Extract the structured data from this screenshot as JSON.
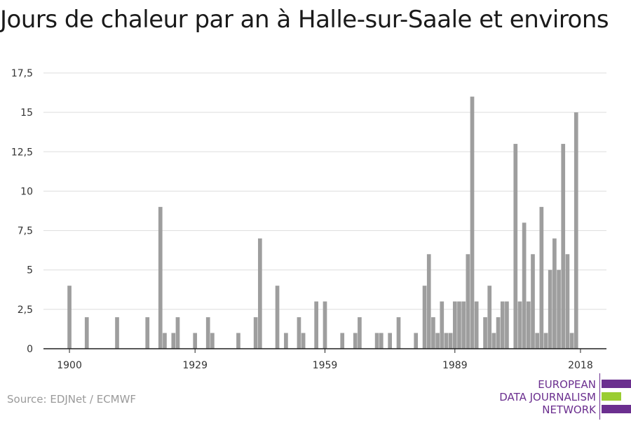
{
  "chart_data": {
    "type": "bar",
    "title": "Jours de chaleur par an à Halle-sur-Saale et environs",
    "xlabel": "",
    "ylabel": "",
    "xlim": [
      1894,
      2024
    ],
    "ylim": [
      0,
      17.5
    ],
    "yticks": [
      "0",
      "2,5",
      "5",
      "7,5",
      "10",
      "12,5",
      "15",
      "17,5"
    ],
    "ytick_values": [
      0,
      2.5,
      5,
      7.5,
      10,
      12.5,
      15,
      17.5
    ],
    "xticks": [
      "1900",
      "1929",
      "1959",
      "1989",
      "2018"
    ],
    "xtick_values": [
      1900,
      1929,
      1959,
      1989,
      2018
    ],
    "grid": true,
    "bar_color": "#9e9e9e",
    "x": [
      1900,
      1904,
      1911,
      1918,
      1921,
      1922,
      1924,
      1925,
      1929,
      1932,
      1933,
      1939,
      1943,
      1944,
      1948,
      1950,
      1953,
      1954,
      1957,
      1959,
      1963,
      1966,
      1967,
      1971,
      1972,
      1974,
      1976,
      1980,
      1982,
      1983,
      1984,
      1985,
      1986,
      1987,
      1988,
      1989,
      1990,
      1991,
      1992,
      1993,
      1994,
      1996,
      1997,
      1998,
      1999,
      2000,
      2001,
      2003,
      2004,
      2005,
      2006,
      2007,
      2008,
      2009,
      2010,
      2011,
      2012,
      2013,
      2014,
      2015,
      2016,
      2017,
      2018
    ],
    "values": [
      4,
      2,
      2,
      2,
      9,
      1,
      1,
      2,
      1,
      2,
      1,
      1,
      2,
      7,
      4,
      1,
      2,
      1,
      3,
      3,
      1,
      1,
      2,
      1,
      1,
      1,
      2,
      1,
      4,
      6,
      2,
      1,
      3,
      1,
      1,
      3,
      3,
      3,
      6,
      16,
      3,
      2,
      4,
      1,
      2,
      3,
      3,
      13,
      3,
      8,
      3,
      6,
      1,
      9,
      1,
      5,
      7,
      5,
      13,
      6,
      1,
      15,
      0
    ]
  },
  "source": "Source: EDJNet / ECMWF",
  "logo": {
    "line1": "EUROPEAN",
    "line2": "DATA JOURNALISM",
    "line3": "NETWORK",
    "purple": "#6b2f8f",
    "green": "#9acd32"
  }
}
